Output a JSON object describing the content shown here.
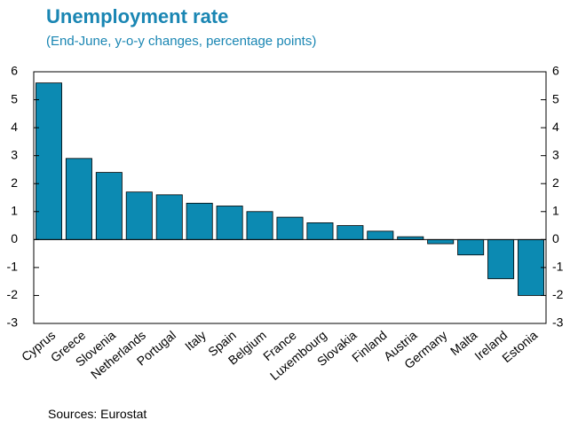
{
  "title": "Unemployment rate",
  "subtitle": "(End-June, y-o-y changes, percentage points)",
  "source": "Sources: Eurostat",
  "colors": {
    "bar": "#0c8ab2",
    "title": "#1a86b3",
    "frame": "#000000"
  },
  "chart_data": {
    "type": "bar",
    "categories": [
      "Cyprus",
      "Greece",
      "Slovenia",
      "Netherlands",
      "Portugal",
      "Italy",
      "Spain",
      "Belgium",
      "France",
      "Luxembourg",
      "Slovakia",
      "Finland",
      "Austria",
      "Germany",
      "Malta",
      "Ireland",
      "Estonia"
    ],
    "values": [
      5.6,
      2.9,
      2.4,
      1.7,
      1.6,
      1.3,
      1.2,
      1.0,
      0.8,
      0.6,
      0.5,
      0.3,
      0.1,
      -0.15,
      -0.55,
      -1.4,
      -2.0
    ],
    "title": "Unemployment rate",
    "subtitle": "(End-June, y-o-y changes, percentage points)",
    "xlabel": "",
    "ylabel": "",
    "ylim": [
      -3,
      6
    ],
    "y_ticks": [
      -3,
      -2,
      -1,
      0,
      1,
      2,
      3,
      4,
      5,
      6
    ],
    "y_axis_both_sides": true,
    "grid": false,
    "legend": "none",
    "source": "Sources: Eurostat"
  }
}
